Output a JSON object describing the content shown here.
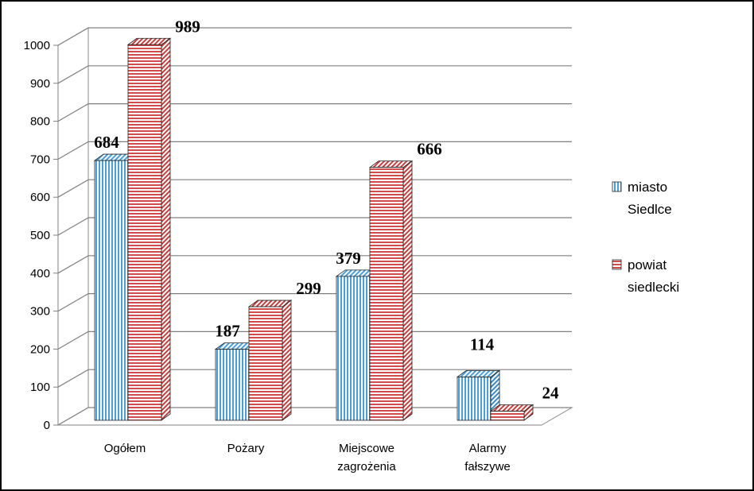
{
  "chart_data": {
    "type": "bar",
    "categories": [
      [
        "Ogółem"
      ],
      [
        "Pożary"
      ],
      [
        "Miejscowe",
        "zagrożenia"
      ],
      [
        "Alarmy",
        "fałszywe"
      ]
    ],
    "series": [
      {
        "name": [
          "miasto",
          "Siedlce"
        ],
        "values": [
          684,
          187,
          379,
          114
        ],
        "color": "#4a9fd8"
      },
      {
        "name": [
          "powiat",
          "siedlecki"
        ],
        "values": [
          989,
          299,
          666,
          24
        ],
        "color": "#d24b4b"
      }
    ],
    "ylim": [
      0,
      1000
    ],
    "yticks": [
      0,
      100,
      200,
      300,
      400,
      500,
      600,
      700,
      800,
      900,
      1000
    ],
    "grid": true,
    "legend_position": "right",
    "style": "3d-clustered"
  }
}
